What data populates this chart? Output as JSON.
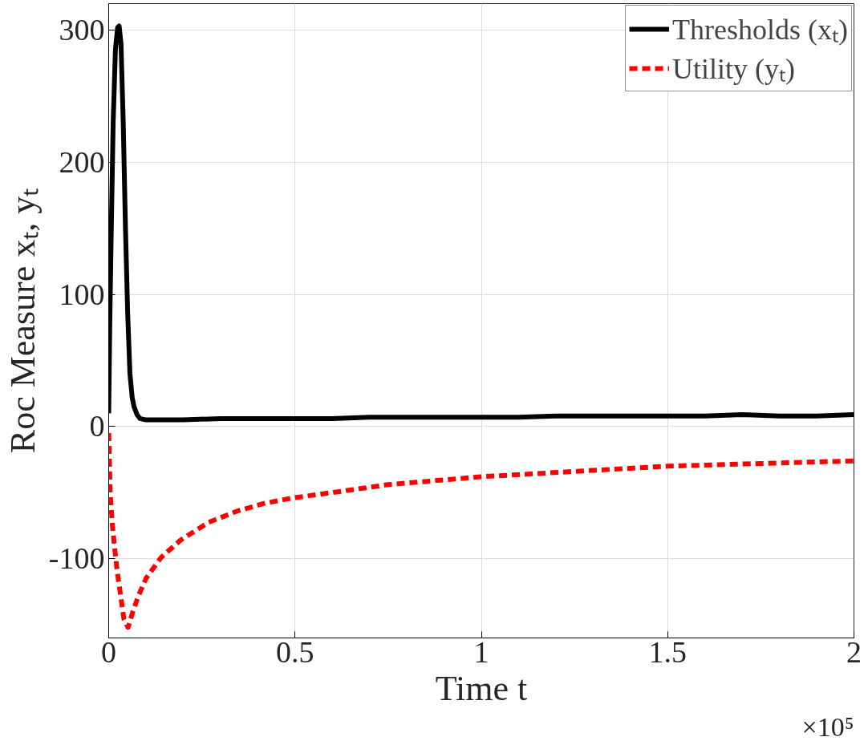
{
  "chart_data": {
    "type": "line",
    "xlabel": "Time t",
    "ylabel": "Roc Measure xₜ, yₜ",
    "annotations": [
      "×10⁵"
    ],
    "xlim": [
      0,
      2
    ],
    "ylim": [
      -160,
      320
    ],
    "xticks": [
      0,
      0.5,
      1,
      1.5,
      2
    ],
    "yticks": [
      {
        "value": -100,
        "label": "-100"
      },
      0,
      100,
      200,
      300
    ],
    "grid": true,
    "legend": "top right",
    "marker": "none",
    "series": [
      {
        "name": "Thresholds (xₜ)",
        "color": "#000000",
        "line_style": "solid",
        "x": [
          0,
          0.003,
          0.007,
          0.012,
          0.018,
          0.024,
          0.028,
          0.033,
          0.039,
          0.045,
          0.051,
          0.057,
          0.063,
          0.068,
          0.076,
          0.084,
          0.1,
          0.15,
          0.2,
          0.3,
          0.4,
          0.5,
          0.6,
          0.7,
          0.8,
          0.9,
          1.0,
          1.1,
          1.2,
          1.3,
          1.4,
          1.5,
          1.6,
          1.7,
          1.8,
          1.9,
          2.0
        ],
        "values": [
          10,
          80,
          150,
          230,
          285,
          302,
          303,
          290,
          230,
          150,
          85,
          40,
          22,
          15,
          9,
          6,
          5,
          5,
          5,
          6,
          6,
          6,
          6,
          7,
          7,
          7,
          7,
          7,
          8,
          8,
          8,
          8,
          8,
          9,
          8,
          8,
          9
        ]
      },
      {
        "name": "Utility (yₜ)",
        "color": "#ff0000",
        "line_style": "dotted",
        "x": [
          0,
          0.004,
          0.01,
          0.016,
          0.023,
          0.03,
          0.041,
          0.052,
          0.065,
          0.08,
          0.1,
          0.141,
          0.193,
          0.268,
          0.345,
          0.42,
          0.495,
          0.625,
          0.75,
          0.875,
          1.0,
          1.25,
          1.5,
          1.75,
          2.0
        ],
        "values": [
          -5,
          -50,
          -75,
          -92,
          -110,
          -124,
          -146,
          -152,
          -140,
          -128,
          -115,
          -99,
          -86,
          -72.5,
          -64,
          -58,
          -54,
          -49,
          -44,
          -41,
          -38,
          -34,
          -30,
          -28,
          -26
        ]
      }
    ]
  }
}
